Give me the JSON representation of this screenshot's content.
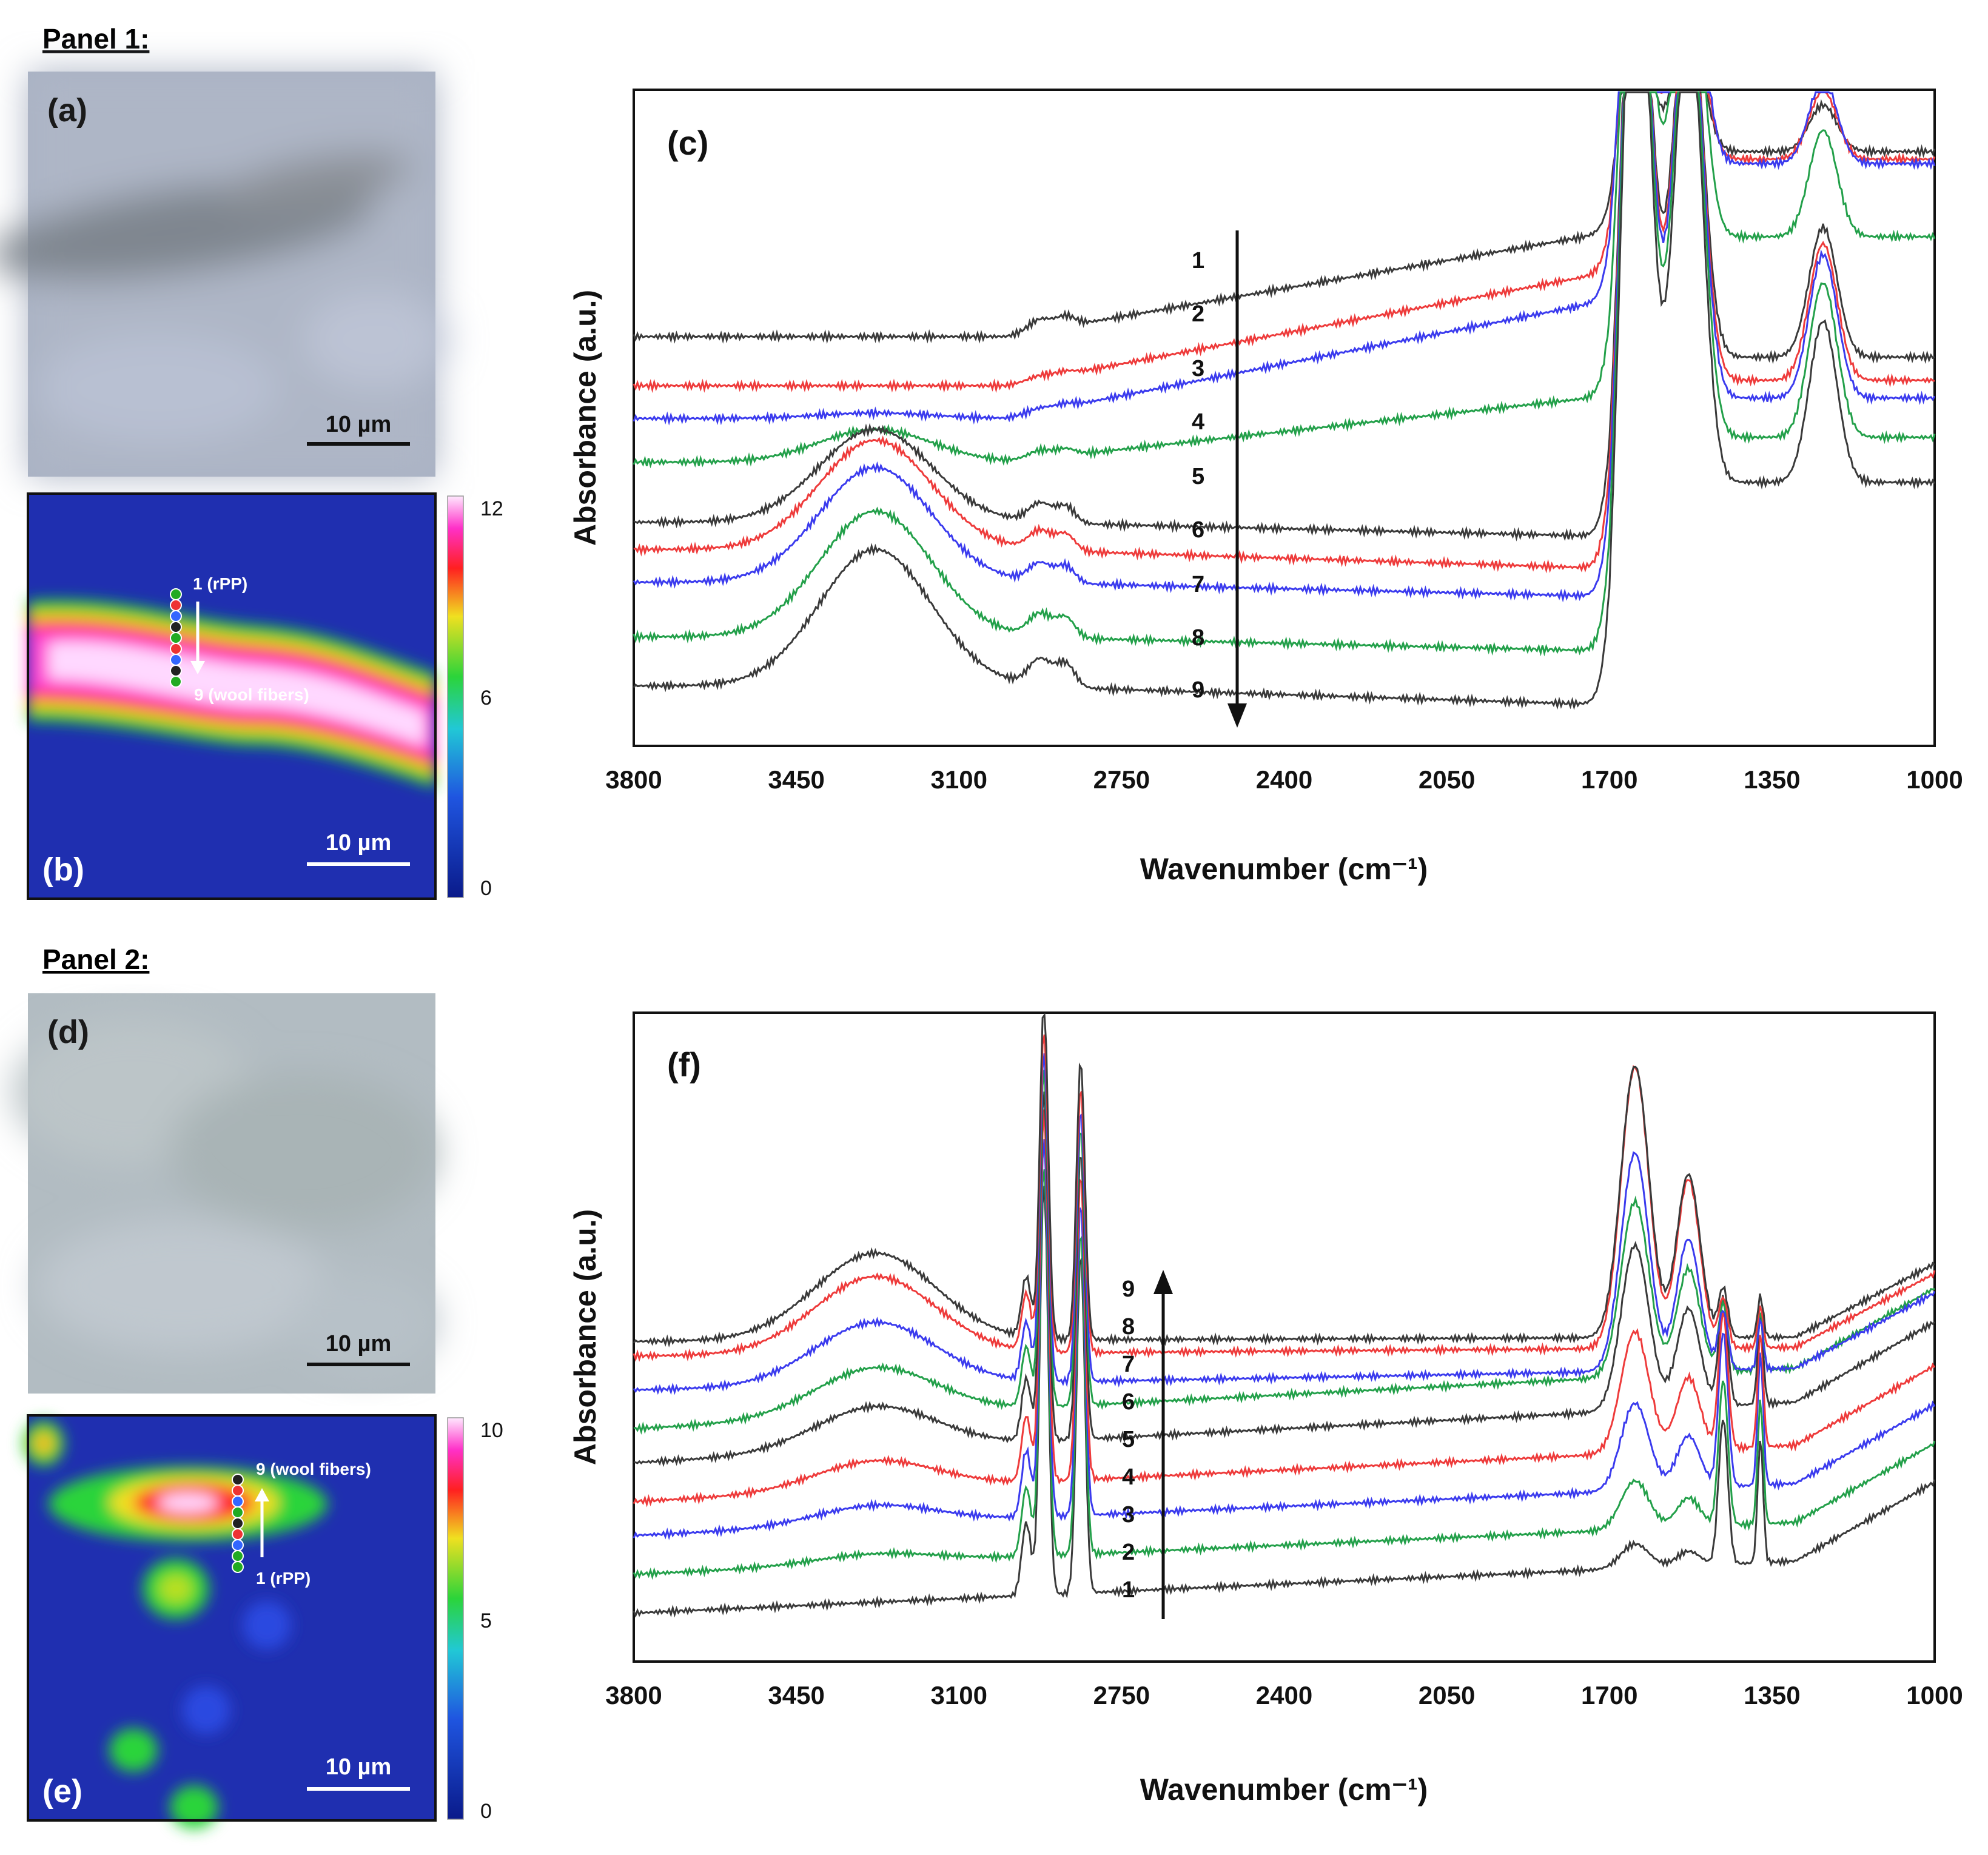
{
  "panels": {
    "p1": {
      "title": "Panel 1:",
      "optical_label": "(a)",
      "map_label": "(b)",
      "chart_label": "(c)"
    },
    "p2": {
      "title": "Panel 2:",
      "optical_label": "(d)",
      "map_label": "(e)",
      "chart_label": "(f)"
    }
  },
  "scale_bar": "10 µm",
  "map_b": {
    "colorbar_ticks": [
      "12",
      "6",
      "0"
    ],
    "start_label": "1 (rPP)",
    "end_label": "9 (wool fibers)"
  },
  "map_e": {
    "colorbar_ticks": [
      "10",
      "5",
      "0"
    ],
    "start_label": "1 (rPP)",
    "end_label": "9 (wool fibers)"
  },
  "colors": {
    "black": "#3a3a3a",
    "red": "#ee3b3b",
    "blue": "#3b3bee",
    "green": "#23a04a",
    "map_bg": "#1f2fb0"
  },
  "chart_data": [
    {
      "type": "line",
      "id": "c",
      "xlabel": "Wavenumber (cm⁻¹)",
      "ylabel": "Absorbance (a.u.)",
      "xlim": [
        3800,
        1000
      ],
      "x_ticks": [
        "3800",
        "3450",
        "3100",
        "2750",
        "2400",
        "2050",
        "1700",
        "1350",
        "1000"
      ],
      "arrow_direction": "down",
      "series": [
        {
          "name": "1",
          "color": "black",
          "baseline": 0.75,
          "nh": 0.0,
          "ch": 0.03,
          "up": 0.22,
          "amide": 0.34
        },
        {
          "name": "2",
          "color": "red",
          "baseline": 0.66,
          "nh": 0.0,
          "ch": 0.01,
          "up": 0.24,
          "amide": 0.5
        },
        {
          "name": "3",
          "color": "blue",
          "baseline": 0.6,
          "nh": 0.01,
          "ch": 0.01,
          "up": 0.25,
          "amide": 0.62
        },
        {
          "name": "4",
          "color": "green",
          "baseline": 0.52,
          "nh": 0.06,
          "ch": 0.02,
          "up": 0.14,
          "amide": 0.78
        },
        {
          "name": "5",
          "color": "black",
          "baseline": 0.41,
          "nh": 0.17,
          "ch": 0.05,
          "up": -0.03,
          "amide": 0.95
        },
        {
          "name": "6",
          "color": "red",
          "baseline": 0.36,
          "nh": 0.2,
          "ch": 0.05,
          "up": -0.04,
          "amide": 1.0
        },
        {
          "name": "7",
          "color": "blue",
          "baseline": 0.3,
          "nh": 0.21,
          "ch": 0.05,
          "up": -0.03,
          "amide": 1.05
        },
        {
          "name": "8",
          "color": "green",
          "baseline": 0.2,
          "nh": 0.23,
          "ch": 0.06,
          "up": -0.03,
          "amide": 1.13
        },
        {
          "name": "9",
          "color": "black",
          "baseline": 0.11,
          "nh": 0.25,
          "ch": 0.07,
          "up": -0.04,
          "amide": 1.18
        }
      ]
    },
    {
      "type": "line",
      "id": "f",
      "xlabel": "Wavenumber (cm⁻¹)",
      "ylabel": "Absorbance (a.u.)",
      "xlim": [
        3800,
        1000
      ],
      "x_ticks": [
        "3800",
        "3450",
        "3100",
        "2750",
        "2400",
        "2050",
        "1700",
        "1350",
        "1000"
      ],
      "arrow_direction": "up",
      "series": [
        {
          "name": "1",
          "color": "black",
          "baseline": 0.1,
          "nh": 0.0,
          "ch": 1.0,
          "up": 0.12,
          "amide": 0.05,
          "pp": 0.3
        },
        {
          "name": "2",
          "color": "green",
          "baseline": 0.18,
          "nh": 0.02,
          "ch": 0.95,
          "up": 0.12,
          "amide": 0.1,
          "pp": 0.3
        },
        {
          "name": "3",
          "color": "blue",
          "baseline": 0.26,
          "nh": 0.04,
          "ch": 0.92,
          "up": 0.12,
          "amide": 0.18,
          "pp": 0.32
        },
        {
          "name": "4",
          "color": "red",
          "baseline": 0.33,
          "nh": 0.06,
          "ch": 0.9,
          "up": 0.13,
          "amide": 0.25,
          "pp": 0.28
        },
        {
          "name": "5",
          "color": "black",
          "baseline": 0.41,
          "nh": 0.09,
          "ch": 0.85,
          "up": 0.14,
          "amide": 0.34,
          "pp": 0.22
        },
        {
          "name": "6",
          "color": "green",
          "baseline": 0.48,
          "nh": 0.1,
          "ch": 0.82,
          "up": 0.14,
          "amide": 0.36,
          "pp": 0.14
        },
        {
          "name": "7",
          "color": "blue",
          "baseline": 0.56,
          "nh": 0.13,
          "ch": 0.8,
          "up": 0.05,
          "amide": 0.45,
          "pp": 0.12
        },
        {
          "name": "8",
          "color": "red",
          "baseline": 0.63,
          "nh": 0.16,
          "ch": 0.78,
          "up": 0.02,
          "amide": 0.58,
          "pp": 0.1
        },
        {
          "name": "9",
          "color": "black",
          "baseline": 0.66,
          "nh": 0.18,
          "ch": 0.82,
          "up": 0.01,
          "amide": 0.56,
          "pp": 0.1
        }
      ]
    }
  ]
}
